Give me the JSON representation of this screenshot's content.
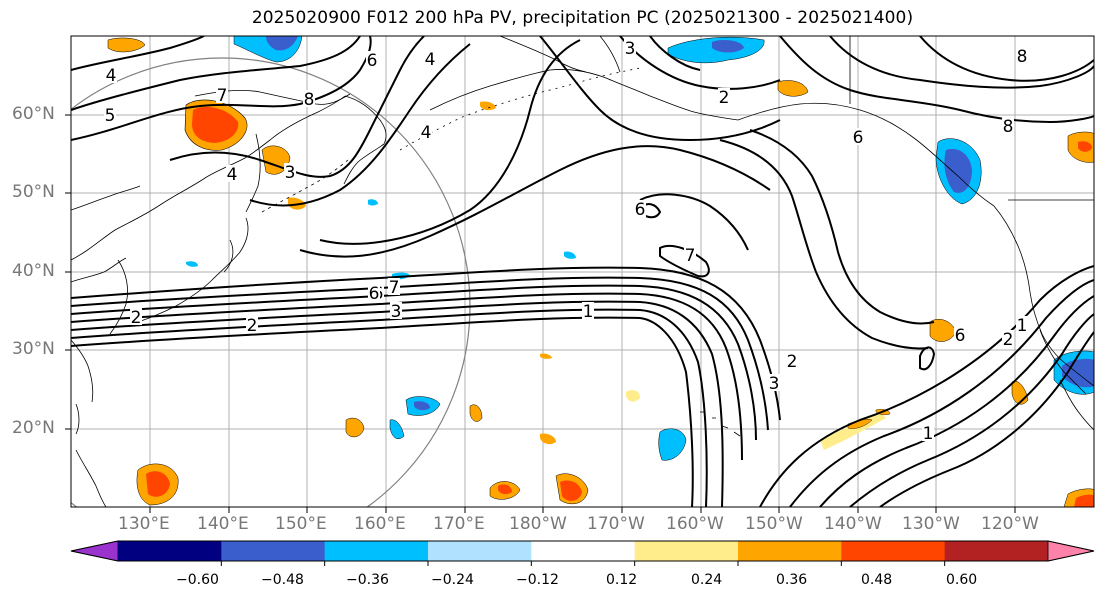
{
  "title": "2025020900 F012 200 hPa PV, precipitation PC (2025021300 - 2025021400)",
  "lat_labels": [
    "60°N",
    "50°N",
    "40°N",
    "30°N",
    "20°N"
  ],
  "lon_labels": [
    "130°E",
    "140°E",
    "150°E",
    "160°E",
    "170°E",
    "180°W",
    "170°W",
    "160°W",
    "150°W",
    "140°W",
    "130°W",
    "120°W"
  ],
  "colorbar": {
    "ticks": [
      "−0.60",
      "−0.48",
      "−0.36",
      "−0.24",
      "−0.12",
      "0.12",
      "0.24",
      "0.36",
      "0.48",
      "0.60"
    ],
    "colors": [
      "#9a32cd",
      "#000080",
      "#3a5fcd",
      "#00bfff",
      "#b0e2ff",
      "#ffffff",
      "#ffec8b",
      "#ffa500",
      "#ff4500",
      "#b22222",
      "#ff82ab"
    ]
  },
  "contour_labels": [
    "4",
    "5",
    "7",
    "8",
    "6",
    "4",
    "3",
    "2",
    "8",
    "6",
    "8",
    "7",
    "6",
    "3",
    "1",
    "2",
    "2",
    "6",
    "7",
    "4",
    "3",
    "4",
    "2",
    "1",
    "6",
    "6",
    "2",
    "3",
    "1"
  ]
}
